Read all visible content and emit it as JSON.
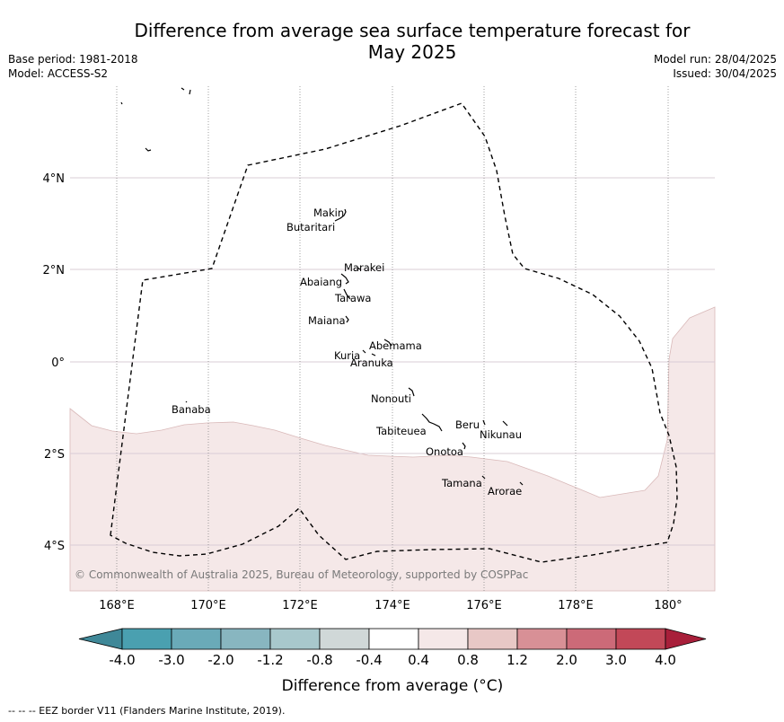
{
  "title_line1": "Difference from average sea surface temperature forecast for",
  "title_line2": "May 2025",
  "meta_left": [
    "Base period: 1981-2018",
    "Model: ACCESS-S2"
  ],
  "meta_right": [
    "Model run: 28/04/2025",
    "Issued: 30/04/2025"
  ],
  "copyright": "© Commonwealth of Australia 2025, Bureau of Meteorology, supported by COSPPac",
  "footer": "--  --  -- EEZ border V11 (Flanders Marine Institute, 2019).",
  "x_ticks": [
    "168°E",
    "170°E",
    "172°E",
    "174°E",
    "176°E",
    "178°E",
    "180°"
  ],
  "y_ticks": [
    "4°N",
    "2°N",
    "0°",
    "2°S",
    "4°S"
  ],
  "colorbar": {
    "label": "Difference from average (°C)",
    "tick_labels": [
      "-4.0",
      "-3.0",
      "-2.0",
      "-1.2",
      "-0.8",
      "-0.4",
      "0.4",
      "0.8",
      "1.2",
      "2.0",
      "3.0",
      "4.0"
    ],
    "colors": [
      "#3f8898",
      "#4aa0b0",
      "#6aaab8",
      "#88b6c0",
      "#a8c8cc",
      "#d0d8d8",
      "#ffffff",
      "#f5e8e8",
      "#e8c8c6",
      "#d89096",
      "#cc6a78",
      "#c24858",
      "#a81f3a"
    ]
  },
  "map_fill_color": "#f5e8e8",
  "islands": [
    "Makin",
    "Butaritari",
    "Marakei",
    "Abaiang",
    "Tarawa",
    "Maiana",
    "Abemama",
    "Kuria",
    "Aranuka",
    "Nonouti",
    "Tabiteuea",
    "Beru",
    "Nikunau",
    "Onotoa",
    "Tamana",
    "Arorae",
    "Banaba"
  ]
}
